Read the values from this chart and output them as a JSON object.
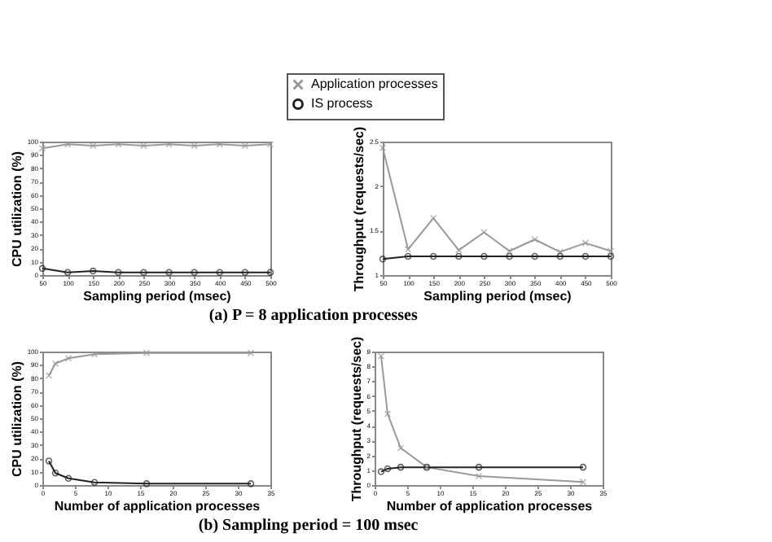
{
  "chart_data": [
    {
      "type": "line",
      "xlabel": "Sampling period (msec)",
      "ylabel": "CPU utilization (%)",
      "x": [
        50,
        100,
        150,
        200,
        250,
        300,
        350,
        400,
        450,
        500
      ],
      "xlim": [
        50,
        500
      ],
      "xticks": [
        50,
        100,
        150,
        200,
        250,
        300,
        350,
        400,
        450,
        500
      ],
      "ylim": [
        0,
        100
      ],
      "yticks": [
        0,
        10,
        20,
        30,
        40,
        50,
        60,
        70,
        80,
        90,
        100
      ],
      "legend": "top",
      "annotations": [
        "(a) P = 8 application processes"
      ],
      "series": [
        {
          "name": "Application processes",
          "color": "#999999",
          "marker": "cross",
          "values": [
            95,
            98,
            97,
            98,
            97,
            98,
            97,
            98,
            97,
            98
          ]
        },
        {
          "name": "IS process",
          "color": "#222222",
          "marker": "circle",
          "values": [
            5,
            2,
            3,
            2,
            2,
            2,
            2,
            2,
            2,
            2
          ]
        }
      ]
    },
    {
      "type": "line",
      "xlabel": "Sampling period (msec)",
      "ylabel": "Throughput (requests/sec)",
      "x": [
        50,
        100,
        150,
        200,
        250,
        300,
        350,
        400,
        450,
        500
      ],
      "xlim": [
        50,
        500
      ],
      "xticks": [
        50,
        100,
        150,
        200,
        250,
        300,
        350,
        400,
        450,
        500
      ],
      "ylim": [
        1,
        2.5
      ],
      "yticks": [
        1,
        1.5,
        2,
        2.5
      ],
      "legend": "top",
      "series": [
        {
          "name": "Application processes",
          "color": "#999999",
          "marker": "cross",
          "values": [
            2.43,
            1.29,
            1.64,
            1.28,
            1.48,
            1.27,
            1.4,
            1.26,
            1.36,
            1.27
          ]
        },
        {
          "name": "IS process",
          "color": "#222222",
          "marker": "circle",
          "values": [
            1.18,
            1.21,
            1.21,
            1.21,
            1.21,
            1.21,
            1.21,
            1.21,
            1.21,
            1.21
          ]
        }
      ]
    },
    {
      "type": "line",
      "xlabel": "Number of application processes",
      "ylabel": "CPU utilization (%)",
      "x": [
        1,
        2,
        4,
        8,
        16,
        32
      ],
      "xlim": [
        0,
        35
      ],
      "xticks": [
        0,
        5,
        10,
        15,
        20,
        25,
        30,
        35
      ],
      "ylim": [
        0,
        100
      ],
      "yticks": [
        0,
        10,
        20,
        30,
        40,
        50,
        60,
        70,
        80,
        90,
        100
      ],
      "legend": "top",
      "annotations": [
        "(b) Sampling period = 100 msec"
      ],
      "series": [
        {
          "name": "Application processes",
          "color": "#999999",
          "marker": "cross",
          "values": [
            82,
            91,
            95,
            98,
            99,
            99
          ]
        },
        {
          "name": "IS process",
          "color": "#222222",
          "marker": "circle",
          "values": [
            18,
            9,
            5,
            2,
            1,
            1
          ]
        }
      ]
    },
    {
      "type": "line",
      "xlabel": "Number of application processes",
      "ylabel": "Throughput (requests/sec)",
      "x": [
        1,
        2,
        4,
        8,
        16,
        32
      ],
      "xlim": [
        0,
        35
      ],
      "xticks": [
        0,
        5,
        10,
        15,
        20,
        25,
        30,
        35
      ],
      "ylim": [
        0,
        9
      ],
      "yticks": [
        0,
        1,
        2,
        3,
        4,
        5,
        6,
        7,
        8,
        9
      ],
      "legend": "top",
      "series": [
        {
          "name": "Application processes",
          "color": "#999999",
          "marker": "cross",
          "values": [
            8.7,
            4.8,
            2.5,
            1.2,
            0.6,
            0.2
          ]
        },
        {
          "name": "IS process",
          "color": "#222222",
          "marker": "circle",
          "values": [
            0.9,
            1.1,
            1.2,
            1.2,
            1.2,
            1.2
          ]
        }
      ]
    }
  ]
}
